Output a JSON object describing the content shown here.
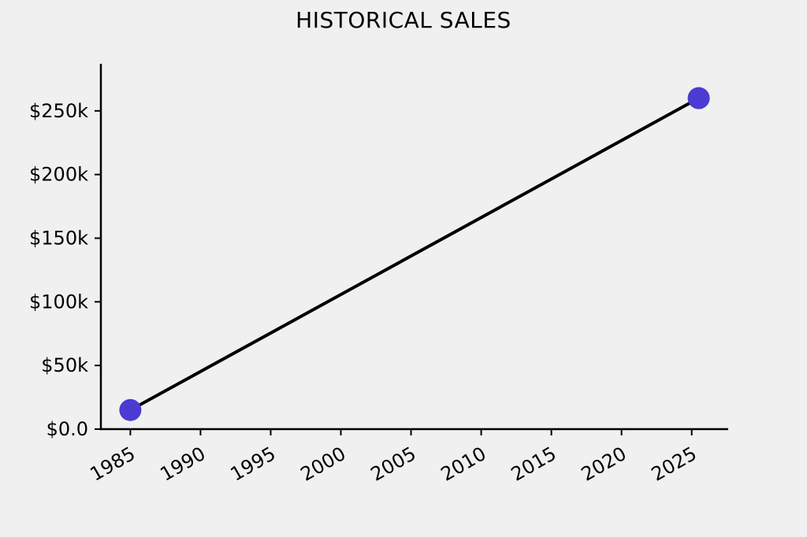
{
  "figure": {
    "background": "#f0f0f0",
    "text_color": "#000000"
  },
  "chart_data": {
    "type": "line",
    "title": "HISTORICAL SALES",
    "series": [
      {
        "name": "historical-sales",
        "x": [
          1985,
          2025.5
        ],
        "y": [
          15000,
          260000
        ],
        "line_color": "#000000",
        "line_width": 4,
        "marker": "circle",
        "marker_color": "#4b3bd3",
        "marker_radius": 14
      }
    ],
    "xlabel": "",
    "ylabel": "",
    "xlim": [
      1982.9,
      2027.6
    ],
    "ylim": [
      0,
      287000
    ],
    "x_ticks": [
      1985,
      1990,
      1995,
      2000,
      2005,
      2010,
      2015,
      2020,
      2025
    ],
    "x_tick_labels": [
      "1985",
      "1990",
      "1995",
      "2000",
      "2005",
      "2010",
      "2015",
      "2020",
      "2025"
    ],
    "x_tick_rotation_deg": 30,
    "y_ticks": [
      0,
      50000,
      100000,
      150000,
      200000,
      250000
    ],
    "y_tick_labels": [
      "$0.0",
      "$50k",
      "$100k",
      "$150k",
      "$200k",
      "$250k"
    ],
    "grid": false,
    "legend": false,
    "axis_color": "#000000"
  }
}
